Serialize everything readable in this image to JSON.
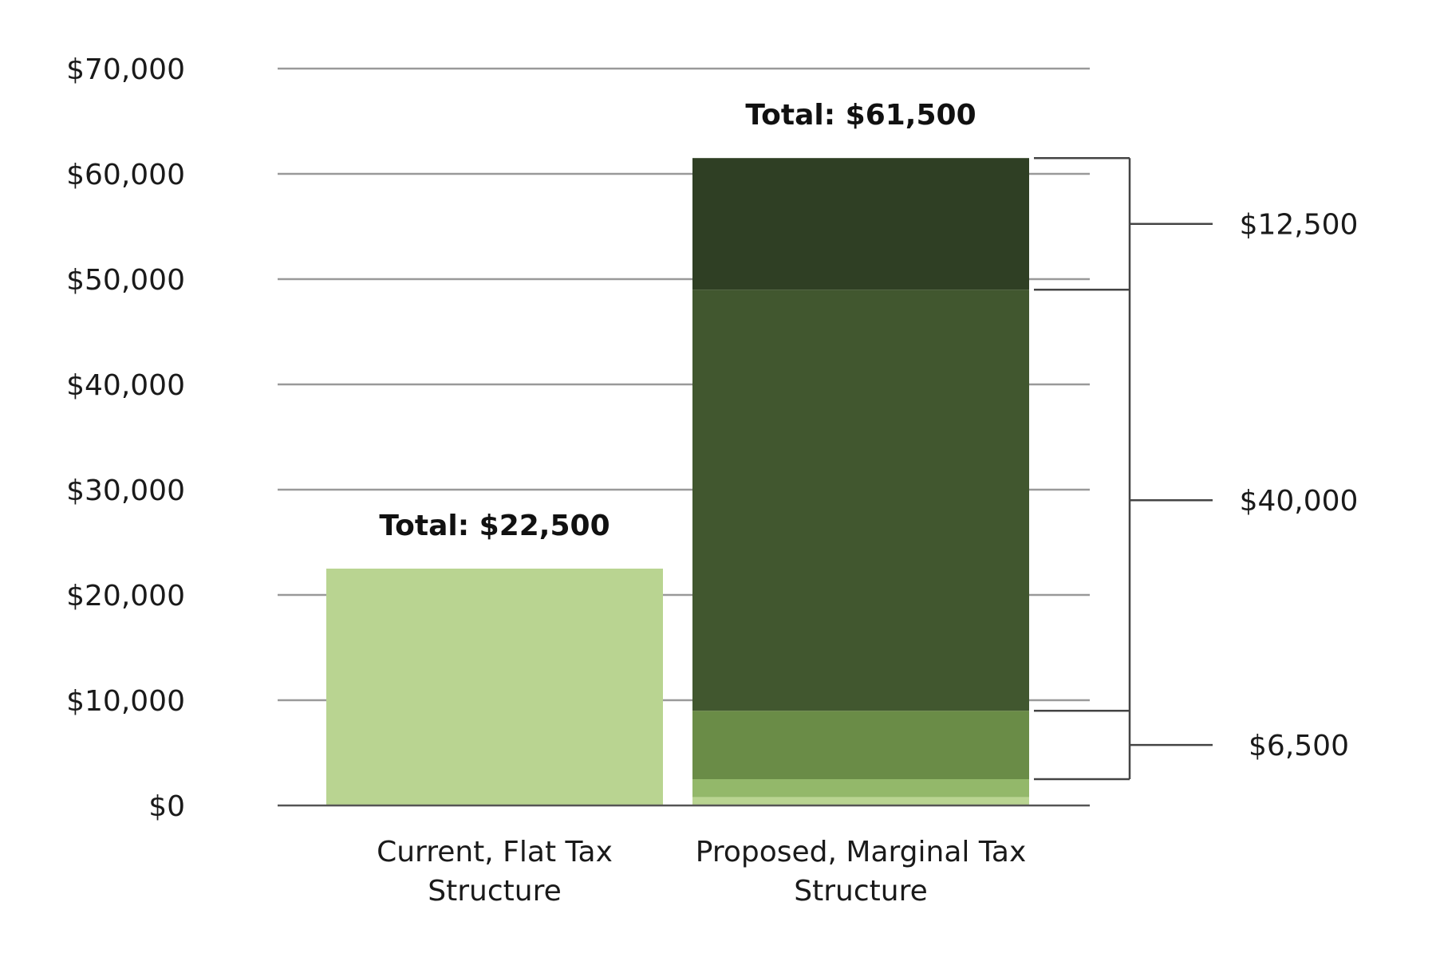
{
  "chart_data": {
    "type": "bar",
    "stacked": true,
    "categories": [
      "Current, Flat Tax Structure",
      "Proposed, Marginal Tax Structure"
    ],
    "category_lines": [
      [
        "Current, Flat Tax",
        "Structure"
      ],
      [
        "Proposed, Marginal Tax",
        "Structure"
      ]
    ],
    "ylim": [
      0,
      70000
    ],
    "yticks": [
      0,
      10000,
      20000,
      30000,
      40000,
      50000,
      60000,
      70000
    ],
    "ytick_labels": [
      "$0",
      "$10,000",
      "$20,000",
      "$30,000",
      "$40,000",
      "$50,000",
      "$60,000",
      "$70,000"
    ],
    "grid": true,
    "bars": [
      {
        "category": "Current, Flat Tax Structure",
        "total_label": "Total: $22,500",
        "segments": [
          {
            "value": 22500,
            "color": "#b9d491"
          }
        ]
      },
      {
        "category": "Proposed, Marginal Tax Structure",
        "total_label": "Total: $61,500",
        "segments": [
          {
            "value": 800,
            "color": "#b9d491"
          },
          {
            "value": 1700,
            "color": "#93b86a"
          },
          {
            "value": 6500,
            "color": "#6a8c47"
          },
          {
            "value": 40000,
            "color": "#41572f"
          },
          {
            "value": 12500,
            "color": "#2f3f24"
          }
        ]
      }
    ],
    "brackets": [
      {
        "from": 49000,
        "to": 61500,
        "label": "$12,500"
      },
      {
        "from": 9000,
        "to": 49000,
        "label": "$40,000"
      },
      {
        "from": 2500,
        "to": 9000,
        "label": "$6,500"
      }
    ]
  }
}
